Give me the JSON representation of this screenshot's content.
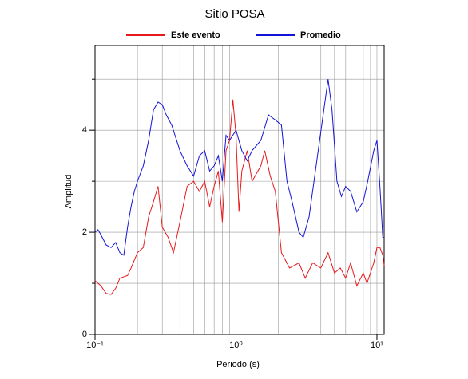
{
  "chart_data": {
    "type": "line",
    "title": "Sitio POSA",
    "x_label": "Periodo (s)",
    "y_label": "Amplitud",
    "xscale": "log",
    "xlim": [
      0.1,
      11.25
    ],
    "ylim": [
      0,
      5.66
    ],
    "xticks": [
      {
        "value": 0.1,
        "label": "10⁻¹"
      },
      {
        "value": 1,
        "label": "10⁰"
      },
      {
        "value": 10,
        "label": "10¹"
      }
    ],
    "minor_xticks": [
      0.2,
      0.3,
      0.4,
      0.5,
      0.6,
      0.7,
      0.8,
      0.9,
      2,
      3,
      4,
      5,
      6,
      7,
      8,
      9
    ],
    "yticks": [
      0,
      2,
      4
    ],
    "minor_yticks": [
      1,
      3,
      5
    ],
    "grid": true,
    "legend": "top",
    "series": [
      {
        "name": "Este evento",
        "color": "#e8191b",
        "x": [
          0.1,
          0.11,
          0.12,
          0.13,
          0.14,
          0.15,
          0.17,
          0.18,
          0.2,
          0.22,
          0.24,
          0.26,
          0.28,
          0.3,
          0.33,
          0.36,
          0.4,
          0.45,
          0.5,
          0.55,
          0.6,
          0.65,
          0.7,
          0.75,
          0.8,
          0.85,
          0.9,
          0.95,
          1.0,
          1.05,
          1.1,
          1.2,
          1.3,
          1.5,
          1.6,
          1.75,
          1.9,
          2.1,
          2.4,
          2.8,
          3.1,
          3.5,
          4.0,
          4.5,
          5.0,
          5.5,
          6.0,
          6.5,
          7.2,
          8.0,
          8.5,
          9.5,
          10,
          10.5,
          11,
          11.25
        ],
        "values": [
          1.05,
          0.95,
          0.8,
          0.78,
          0.9,
          1.1,
          1.15,
          1.3,
          1.6,
          1.7,
          2.3,
          2.6,
          2.9,
          2.1,
          1.9,
          1.6,
          2.2,
          2.9,
          3.0,
          2.8,
          3.0,
          2.5,
          2.9,
          3.2,
          2.2,
          3.6,
          3.8,
          4.6,
          3.9,
          2.4,
          3.2,
          3.6,
          3.0,
          3.3,
          3.6,
          3.1,
          2.8,
          1.6,
          1.3,
          1.4,
          1.1,
          1.4,
          1.3,
          1.6,
          1.2,
          1.3,
          1.1,
          1.4,
          0.95,
          1.2,
          1.0,
          1.4,
          1.7,
          1.7,
          1.55,
          1.35
        ]
      },
      {
        "name": "Promedio",
        "color": "#1414d8",
        "x": [
          0.1,
          0.105,
          0.11,
          0.12,
          0.13,
          0.14,
          0.15,
          0.16,
          0.17,
          0.18,
          0.19,
          0.2,
          0.22,
          0.24,
          0.26,
          0.28,
          0.3,
          0.32,
          0.35,
          0.4,
          0.45,
          0.5,
          0.55,
          0.6,
          0.65,
          0.7,
          0.75,
          0.8,
          0.85,
          0.9,
          1.0,
          1.1,
          1.2,
          1.3,
          1.5,
          1.7,
          1.9,
          2.1,
          2.3,
          2.5,
          2.8,
          3.0,
          3.3,
          3.7,
          4.2,
          4.5,
          4.8,
          5.2,
          5.6,
          6.0,
          6.5,
          7.2,
          8.0,
          8.6,
          9.5,
          10,
          10.5,
          11,
          11.25
        ],
        "values": [
          2.0,
          2.05,
          1.95,
          1.75,
          1.7,
          1.8,
          1.6,
          1.55,
          2.1,
          2.5,
          2.8,
          3.0,
          3.3,
          3.8,
          4.4,
          4.55,
          4.5,
          4.3,
          4.1,
          3.6,
          3.3,
          3.1,
          3.5,
          3.6,
          3.2,
          3.3,
          3.5,
          3.0,
          3.9,
          3.8,
          4.0,
          3.6,
          3.4,
          3.6,
          3.8,
          4.3,
          4.2,
          4.1,
          3.0,
          2.6,
          2.0,
          1.9,
          2.3,
          3.3,
          4.4,
          5.0,
          4.4,
          3.0,
          2.7,
          2.9,
          2.8,
          2.4,
          2.6,
          3.0,
          3.6,
          3.8,
          2.9,
          1.9,
          1.9
        ]
      }
    ]
  }
}
